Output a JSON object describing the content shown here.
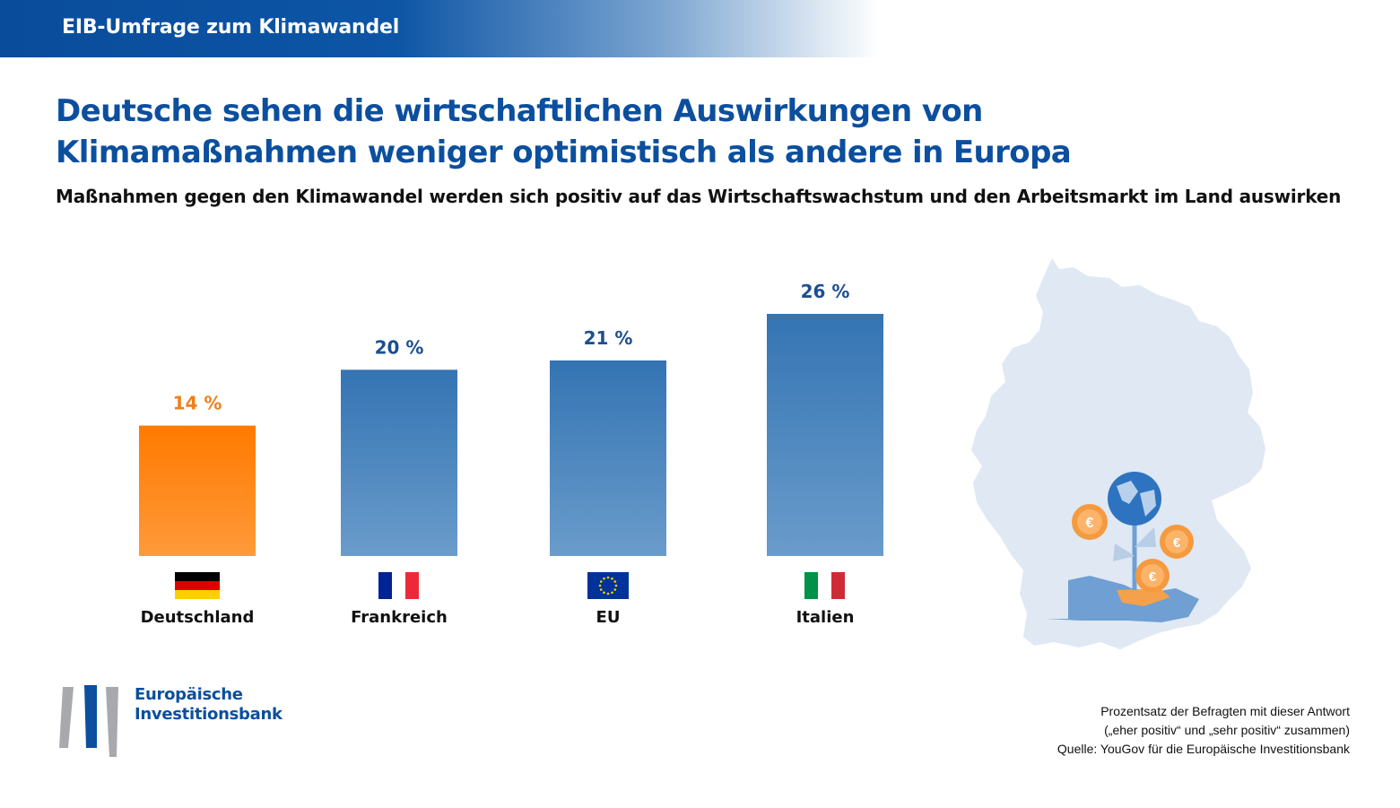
{
  "header": {
    "banner_text": "EIB-Umfrage zum Klimawandel"
  },
  "title_line1": "Deutsche sehen die wirtschaftlichen Auswirkungen von",
  "title_line2": "Klimamaßnahmen weniger optimistisch als andere in Europa",
  "subtitle": "Maßnahmen gegen den Klimawandel werden sich positiv auf das Wirtschaftswachstum und den Arbeitsmarkt im Land auswirken",
  "chart_data": {
    "type": "bar",
    "categories": [
      "Deutschland",
      "Frankreich",
      "EU",
      "Italien"
    ],
    "values": [
      14,
      20,
      21,
      26
    ],
    "value_labels": [
      "14 %",
      "20 %",
      "21 %",
      "26 %"
    ],
    "highlight_category": "Deutschland",
    "colors": {
      "highlight": "#ff7f0e",
      "default": "#3b78b6",
      "highlight_label": "#f07f1a",
      "default_label": "#1d4f8f"
    },
    "ylim": [
      0,
      26
    ],
    "title": "",
    "xlabel": "",
    "ylabel": ""
  },
  "footer": {
    "logo_line1": "Europäische",
    "logo_line2": "Investitionsbank",
    "note_line1": "Prozentsatz der Befragten mit dieser Antwort",
    "note_line2": "(„eher positiv“ und „sehr positiv“ zusammen)",
    "note_line3": "Quelle: YouGov für die Europäische Investitionsbank"
  },
  "icons": [
    "flag-germany-icon",
    "flag-france-icon",
    "flag-eu-icon",
    "flag-italy-icon",
    "germany-map-icon",
    "globe-plant-hand-icon",
    "euro-coin-icon"
  ]
}
